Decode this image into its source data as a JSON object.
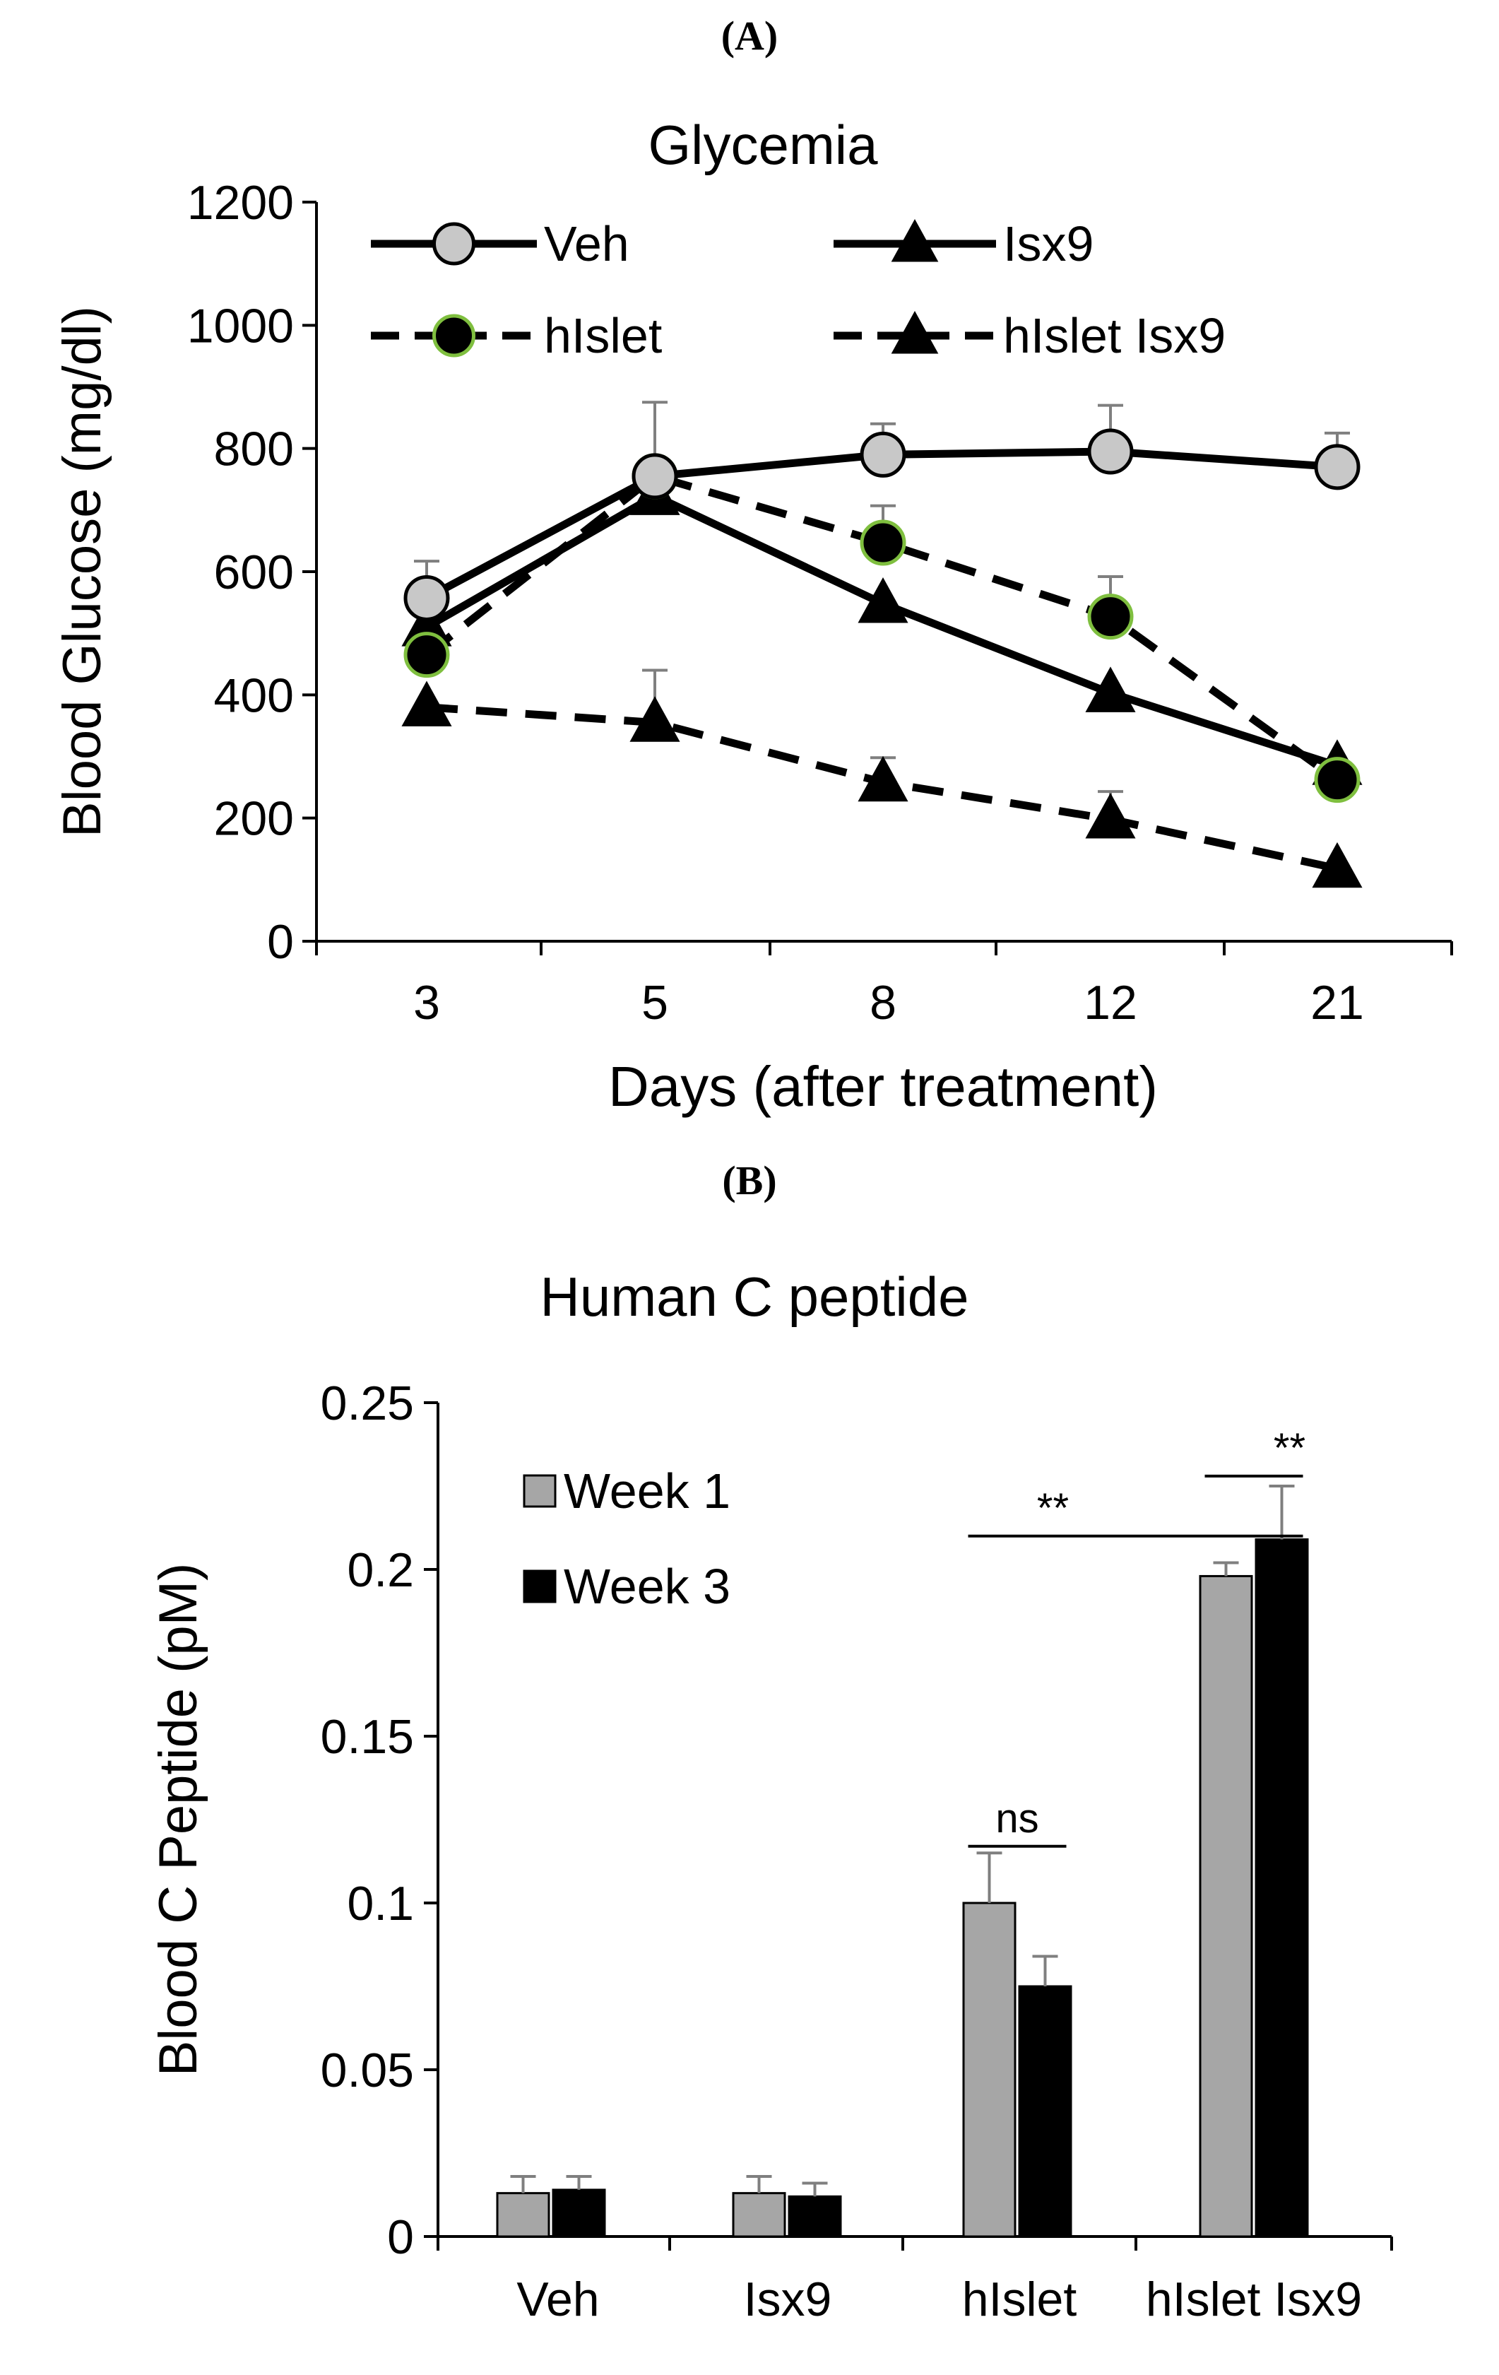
{
  "panel_a_label": "(A)",
  "panel_b_label": "(B)",
  "chart_data": [
    {
      "type": "line",
      "title": "Glycemia",
      "xlabel": "Days (after treatment)",
      "ylabel": "Blood Glucose (mg/dl)",
      "categories": [
        "3",
        "5",
        "8",
        "12",
        "21"
      ],
      "ylim": [
        0,
        1200
      ],
      "yticks": [
        0,
        200,
        400,
        600,
        800,
        1000,
        1200
      ],
      "legend_position": "top",
      "series": [
        {
          "name": "Veh",
          "marker": "circle",
          "line": "solid",
          "marker_fill": "#c8c8c8",
          "marker_edge": "#000000",
          "values": [
            557,
            755,
            790,
            795,
            770
          ],
          "errors": [
            60,
            120,
            50,
            75,
            55
          ]
        },
        {
          "name": "Isx9",
          "marker": "triangle",
          "line": "solid",
          "marker_fill": "#000000",
          "marker_edge": "#000000",
          "values": [
            510,
            723,
            548,
            403,
            285
          ],
          "errors": [
            0,
            0,
            0,
            0,
            0
          ]
        },
        {
          "name": "hIslet",
          "marker": "circle",
          "line": "dashed",
          "marker_fill": "#000000",
          "marker_edge": "#7fbf3f",
          "values": [
            465,
            755,
            647,
            527,
            262
          ],
          "errors": [
            0,
            0,
            60,
            65,
            0
          ]
        },
        {
          "name": "hIslet Isx9",
          "marker": "triangle",
          "line": "dashed",
          "marker_fill": "#000000",
          "marker_edge": "#000000",
          "values": [
            380,
            355,
            258,
            198,
            118
          ],
          "errors": [
            0,
            85,
            40,
            45,
            0
          ]
        }
      ]
    },
    {
      "type": "bar",
      "title": "Human C peptide",
      "xlabel": "",
      "ylabel": "Blood  C Peptide (pM)",
      "categories": [
        "Veh",
        "Isx9",
        "hIslet",
        "hIslet Isx9"
      ],
      "ylim": [
        0,
        0.25
      ],
      "yticks": [
        "0",
        "0.05",
        "0.1",
        "0.15",
        "0.2",
        "0.25"
      ],
      "legend_position": "top-left",
      "series": [
        {
          "name": "Week 1",
          "color": "#a6a6a6",
          "values": [
            0.013,
            0.013,
            0.1,
            0.198
          ],
          "errors": [
            0.005,
            0.005,
            0.015,
            0.004
          ]
        },
        {
          "name": "Week 3",
          "color": "#000000",
          "values": [
            0.014,
            0.012,
            0.075,
            0.209
          ],
          "errors": [
            0.004,
            0.004,
            0.009,
            0.016
          ]
        }
      ],
      "annotations": [
        {
          "text": "ns",
          "from": [
            2,
            0
          ],
          "to": [
            2,
            1
          ],
          "y": 0.117
        },
        {
          "text": "**",
          "from": [
            2,
            0
          ],
          "to": [
            3,
            1
          ],
          "y": 0.21
        },
        {
          "text": "**",
          "from": [
            3,
            0
          ],
          "to": [
            3,
            1
          ],
          "y": 0.228
        }
      ]
    }
  ]
}
